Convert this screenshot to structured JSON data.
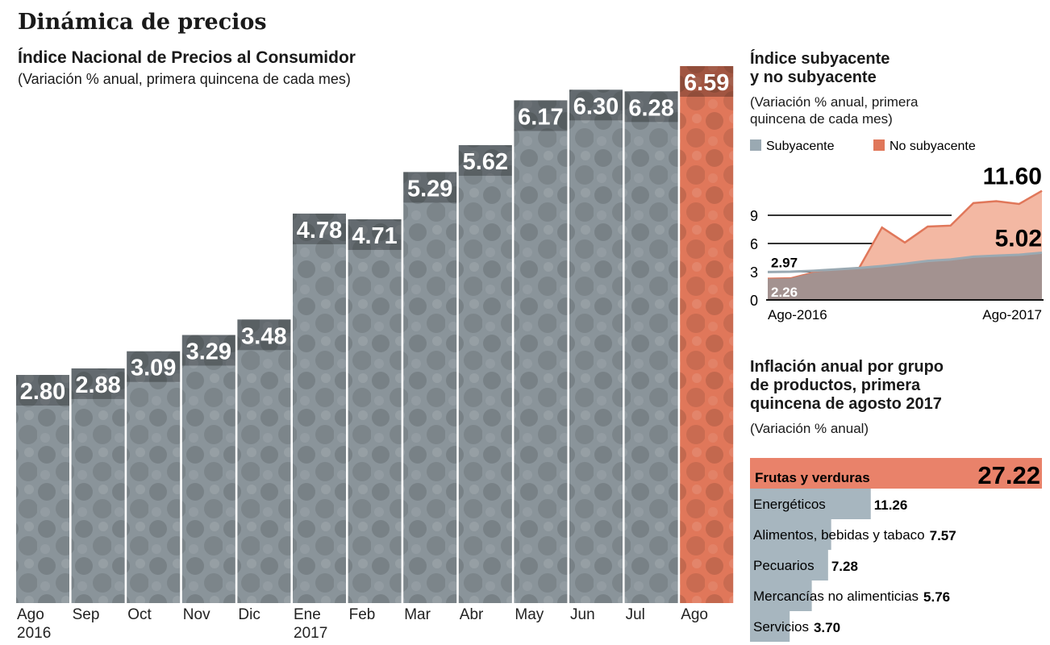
{
  "title": "Dinámica de precios",
  "chart_data": [
    {
      "type": "bar",
      "title": "Índice Nacional de Precios al Consumidor",
      "subtitle": "(Variación % anual, primera quincena de cada mes)",
      "categories": [
        "Ago 2016",
        "Sep",
        "Oct",
        "Nov",
        "Dic",
        "Ene 2017",
        "Feb",
        "Mar",
        "Abr",
        "May",
        "Jun",
        "Jul",
        "Ago"
      ],
      "category_lines": [
        [
          "Ago",
          "2016"
        ],
        [
          "Sep"
        ],
        [
          "Oct"
        ],
        [
          "Nov"
        ],
        [
          "Dic"
        ],
        [
          "Ene",
          "2017"
        ],
        [
          "Feb"
        ],
        [
          "Mar"
        ],
        [
          "Abr"
        ],
        [
          "May"
        ],
        [
          "Jun"
        ],
        [
          "Jul"
        ],
        [
          "Ago"
        ]
      ],
      "values": [
        2.8,
        2.88,
        3.09,
        3.29,
        3.48,
        4.78,
        4.71,
        5.29,
        5.62,
        6.17,
        6.3,
        6.28,
        6.59
      ],
      "value_labels": [
        "2.80",
        "2.88",
        "3.09",
        "3.29",
        "3.48",
        "4.78",
        "4.71",
        "5.29",
        "5.62",
        "6.17",
        "6.30",
        "6.28",
        "6.59"
      ],
      "ylim": [
        0,
        6.59
      ],
      "colors": {
        "default": "#8a949a",
        "highlight": "#e0775a"
      },
      "highlight_index": 12
    },
    {
      "type": "area",
      "title_lines": [
        "Índice subyacente",
        "y no subyacente"
      ],
      "subtitle_lines": [
        "(Variación % anual, primera",
        "quincena de cada mes)"
      ],
      "x_labels": [
        "Ago-2016",
        "Ago-2017"
      ],
      "yticks": [
        0,
        3,
        6,
        9
      ],
      "ylim": [
        0,
        12
      ],
      "legend": "top",
      "series": [
        {
          "name": "Subyacente",
          "color": "#9aa9b2",
          "values": [
            2.97,
            3.0,
            3.1,
            3.25,
            3.4,
            3.6,
            3.85,
            4.15,
            4.3,
            4.6,
            4.7,
            4.8,
            5.02
          ],
          "start_label": "2.97",
          "end_label": "5.02"
        },
        {
          "name": "No subyacente",
          "color": "#f3b8a3",
          "line_color": "#e0775a",
          "values": [
            2.26,
            2.3,
            2.9,
            3.2,
            3.4,
            7.7,
            6.1,
            7.8,
            7.9,
            10.3,
            10.5,
            10.2,
            11.6
          ],
          "start_label": "2.26",
          "end_label": "11.60"
        }
      ]
    },
    {
      "type": "bar",
      "orientation": "horizontal",
      "title_lines": [
        "Inflación anual por grupo",
        "de productos, primera",
        "quincena de agosto 2017"
      ],
      "subtitle": "(Variación % anual)",
      "categories": [
        "Frutas y verduras",
        "Energéticos",
        "Alimentos, bebidas y tabaco",
        "Pecuarios",
        "Mercancías no alimenticias",
        "Servicios"
      ],
      "values": [
        27.22,
        11.26,
        7.57,
        7.28,
        5.76,
        3.7
      ],
      "value_labels": [
        "27.22",
        "11.26",
        "7.57",
        "7.28",
        "5.76",
        "3.70"
      ],
      "colors": {
        "default": "#a7b6bf",
        "highlight": "#e9826a"
      }
    }
  ]
}
